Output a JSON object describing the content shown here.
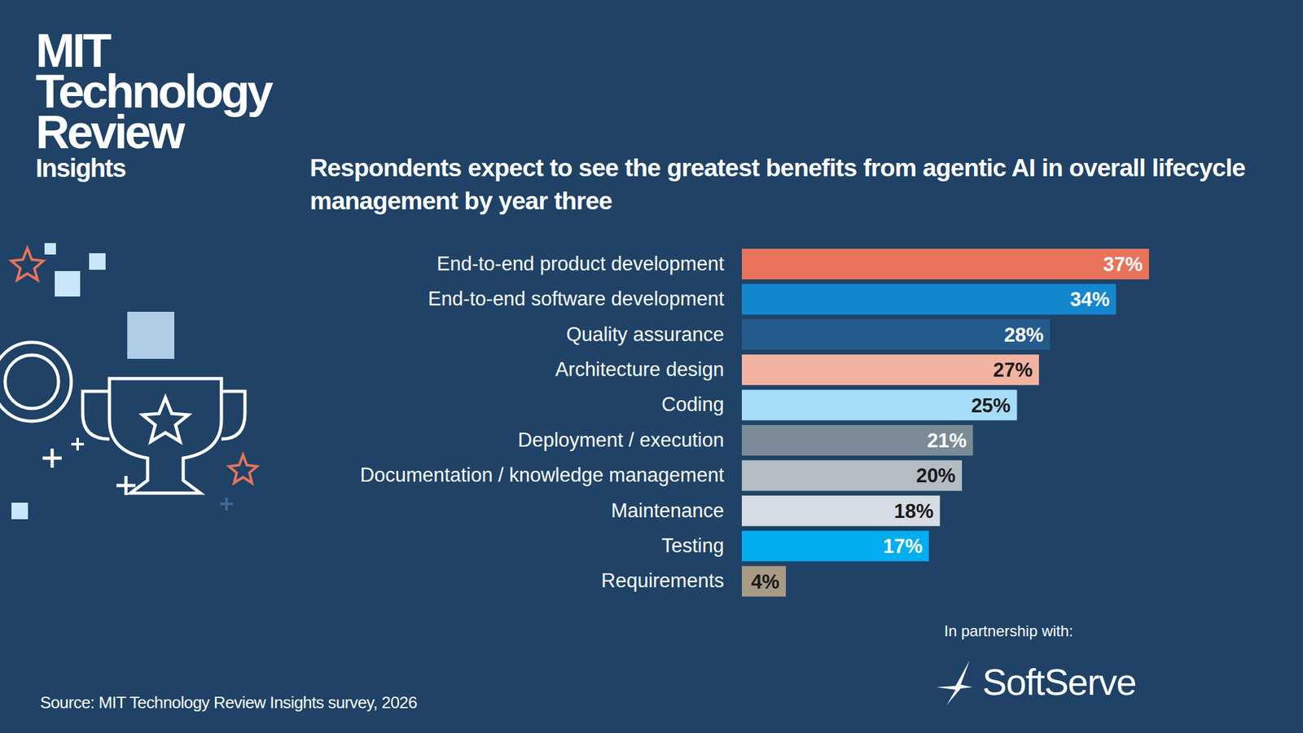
{
  "header": {
    "brand": [
      "MIT",
      "Technology",
      "Review"
    ],
    "brand_sub": "Insights"
  },
  "chart_data": {
    "type": "bar",
    "title": "Respondents expect to see the greatest benefits from agentic AI in overall lifecycle management by year three",
    "orientation": "horizontal",
    "categories": [
      "End-to-end product development",
      "End-to-end software development",
      "Quality assurance",
      "Architecture design",
      "Coding",
      "Deployment / execution",
      "Documentation / knowledge management",
      "Maintenance",
      "Testing",
      "Requirements"
    ],
    "values": [
      37,
      34,
      28,
      27,
      25,
      21,
      20,
      18,
      17,
      4
    ],
    "value_labels": [
      "37%",
      "34%",
      "28%",
      "27%",
      "25%",
      "21%",
      "20%",
      "18%",
      "17%",
      "4%"
    ],
    "colors": [
      "#e8735a",
      "#1487cf",
      "#255a8c",
      "#f2b3a0",
      "#a6ddf8",
      "#7a8a96",
      "#b4bcc4",
      "#d6dce3",
      "#00aeef",
      "#a89a85"
    ],
    "xlim": [
      0,
      37
    ],
    "data_labels": true,
    "tick_labels": "y",
    "grid": false
  },
  "footer": {
    "source": "Source: MIT Technology Review Insights survey, 2026",
    "partner_label": "In partnership with:",
    "partner": "SoftServe"
  }
}
